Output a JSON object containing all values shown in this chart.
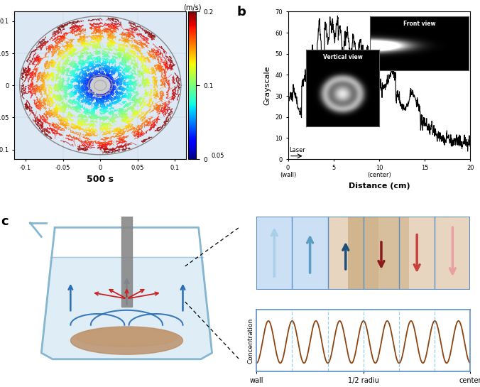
{
  "panel_a_bg": "#dce9f5",
  "panel_a_xlabel": "500 s",
  "panel_a_xticks": [
    -0.1,
    -0.05,
    0,
    0.05,
    0.1
  ],
  "panel_a_yticks": [
    -0.1,
    -0.05,
    0,
    0.05,
    0.1
  ],
  "panel_b_ylabel": "Grayscale",
  "panel_b_xlabel": "Distance (cm)",
  "panel_b_xtick_vals": [
    0,
    5,
    10,
    15,
    20
  ],
  "panel_b_xtick_labels": [
    "0\n(wall)",
    "5",
    "10\n(center)",
    "15",
    "20"
  ],
  "panel_b_yticks": [
    0,
    10,
    20,
    30,
    40,
    50,
    60,
    70
  ],
  "panel_b_ylim": [
    0,
    70
  ],
  "panel_b_xlim": [
    0,
    20
  ],
  "arrow_up_colors": [
    "#a8d0e8",
    "#5a9ec4",
    "#1e4f7a"
  ],
  "arrow_dn_colors": [
    "#8b1a1a",
    "#c94040",
    "#e8a0a0"
  ],
  "conc_line_color": "#8B4513",
  "conc_dash_color": "#87CEEB",
  "border_color": "#5b8fc9",
  "bg_left": "#cce0f5",
  "bg_right": "#e8d5c0",
  "bg_mid_tan": "#c8a87a"
}
